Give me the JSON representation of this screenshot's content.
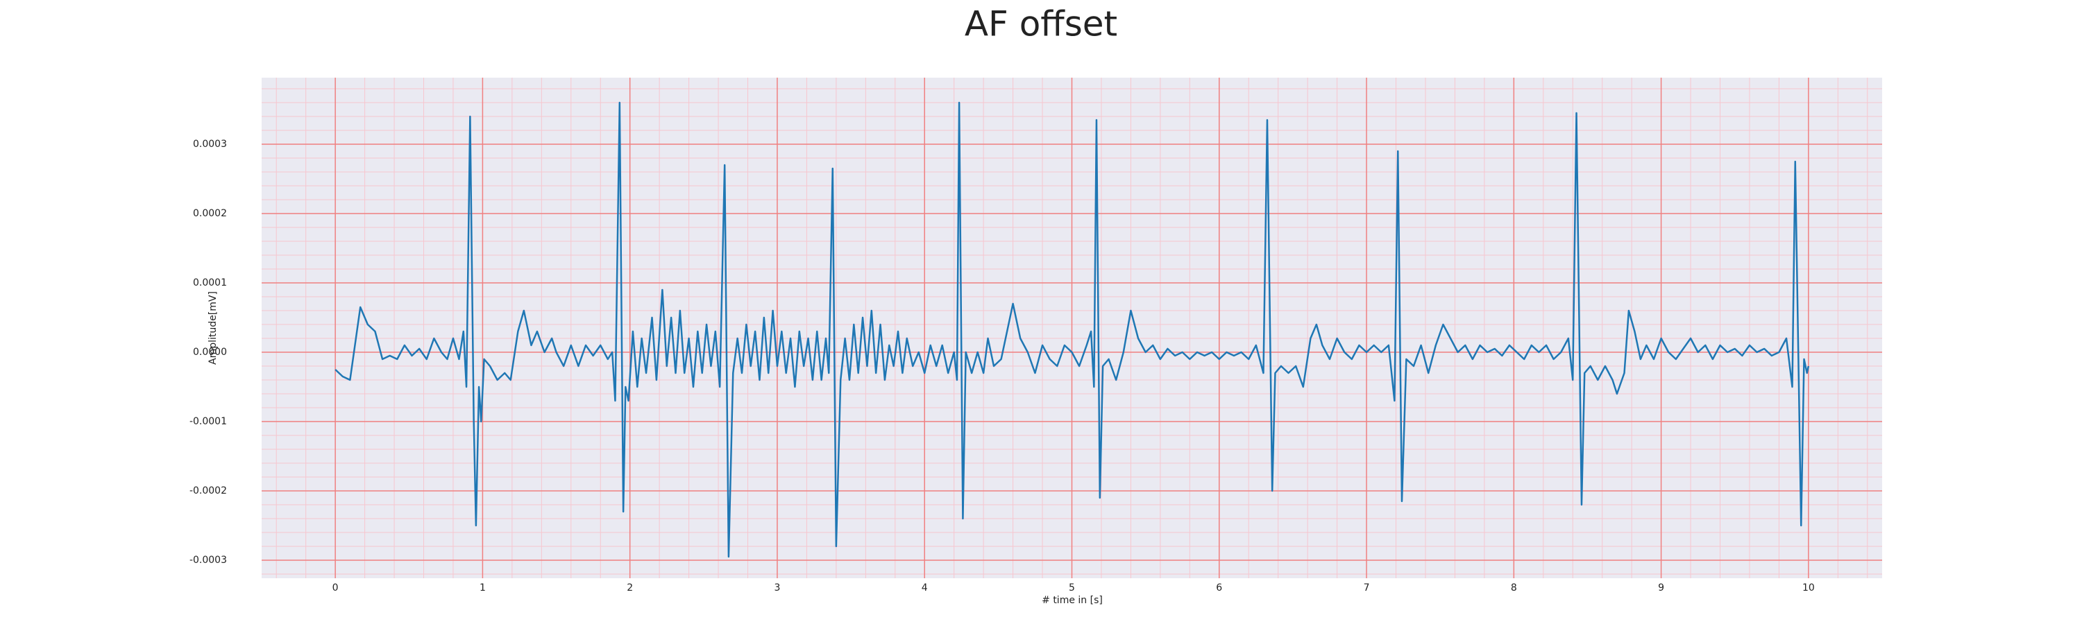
{
  "chart_data": {
    "type": "line",
    "title": "AF offset",
    "xlabel": "# time in [s]",
    "ylabel": "Amplitude[mV]",
    "color": "#1f77b4",
    "background": "#eaeaf2",
    "grid": true,
    "grid_color": "#f08080",
    "minor_grid": true,
    "minor_grid_color": "#f7c6cf",
    "xlim": [
      -0.5,
      10.5
    ],
    "xticks": [
      0,
      1,
      2,
      3,
      4,
      5,
      6,
      7,
      8,
      9,
      10
    ],
    "ylim": [
      -0.000326,
      0.000396
    ],
    "yticks": [
      -0.0003,
      -0.0002,
      -0.0001,
      {
        "value": 0,
        "label": "0.0000"
      },
      0.0001,
      0.0002,
      0.0003
    ],
    "x": [
      0,
      0.05,
      0.1,
      0.14,
      0.17,
      0.22,
      0.27,
      0.32,
      0.37,
      0.42,
      0.47,
      0.52,
      0.57,
      0.62,
      0.67,
      0.72,
      0.76,
      0.8,
      0.84,
      0.87,
      0.89,
      0.915,
      0.94,
      0.955,
      0.975,
      0.99,
      1.01,
      1.05,
      1.1,
      1.15,
      1.19,
      1.24,
      1.28,
      1.33,
      1.37,
      1.42,
      1.47,
      1.5,
      1.55,
      1.6,
      1.65,
      1.7,
      1.75,
      1.8,
      1.85,
      1.88,
      1.9,
      1.93,
      1.955,
      1.97,
      1.99,
      2.02,
      2.05,
      2.08,
      2.11,
      2.15,
      2.18,
      2.22,
      2.25,
      2.28,
      2.31,
      2.34,
      2.37,
      2.4,
      2.43,
      2.46,
      2.49,
      2.52,
      2.55,
      2.58,
      2.61,
      2.643,
      2.67,
      2.7,
      2.73,
      2.76,
      2.79,
      2.82,
      2.85,
      2.88,
      2.91,
      2.94,
      2.97,
      3.0,
      3.03,
      3.06,
      3.09,
      3.12,
      3.15,
      3.18,
      3.21,
      3.24,
      3.27,
      3.3,
      3.33,
      3.35,
      3.376,
      3.4,
      3.43,
      3.46,
      3.49,
      3.52,
      3.55,
      3.58,
      3.61,
      3.64,
      3.67,
      3.7,
      3.73,
      3.76,
      3.79,
      3.82,
      3.85,
      3.88,
      3.92,
      3.96,
      4.0,
      4.04,
      4.08,
      4.12,
      4.16,
      4.2,
      4.22,
      4.235,
      4.26,
      4.28,
      4.32,
      4.36,
      4.4,
      4.43,
      4.47,
      4.52,
      4.55,
      4.6,
      4.65,
      4.7,
      4.75,
      4.8,
      4.85,
      4.9,
      4.95,
      5.0,
      5.05,
      5.1,
      5.13,
      5.15,
      5.167,
      5.19,
      5.21,
      5.25,
      5.3,
      5.35,
      5.4,
      5.45,
      5.5,
      5.55,
      5.6,
      5.65,
      5.7,
      5.75,
      5.8,
      5.85,
      5.9,
      5.95,
      6.0,
      6.05,
      6.1,
      6.15,
      6.2,
      6.25,
      6.3,
      6.326,
      6.36,
      6.38,
      6.42,
      6.47,
      6.52,
      6.57,
      6.62,
      6.66,
      6.7,
      6.75,
      6.8,
      6.85,
      6.9,
      6.95,
      7.0,
      7.05,
      7.1,
      7.15,
      7.19,
      7.213,
      7.24,
      7.27,
      7.32,
      7.37,
      7.42,
      7.47,
      7.52,
      7.57,
      7.62,
      7.67,
      7.72,
      7.77,
      7.82,
      7.87,
      7.92,
      7.97,
      8.02,
      8.07,
      8.12,
      8.17,
      8.22,
      8.27,
      8.32,
      8.37,
      8.4,
      8.425,
      8.46,
      8.48,
      8.52,
      8.57,
      8.62,
      8.67,
      8.7,
      8.75,
      8.78,
      8.82,
      8.86,
      8.9,
      8.95,
      9.0,
      9.05,
      9.1,
      9.15,
      9.2,
      9.25,
      9.3,
      9.35,
      9.4,
      9.45,
      9.5,
      9.55,
      9.6,
      9.65,
      9.7,
      9.75,
      9.8,
      9.85,
      9.89,
      9.91,
      9.95,
      9.97,
      9.99,
      10.0
    ],
    "values": [
      -2.5e-05,
      -3.5e-05,
      -4e-05,
      2e-05,
      6.5e-05,
      4e-05,
      3e-05,
      -1e-05,
      -5e-06,
      -1e-05,
      1e-05,
      -5e-06,
      5e-06,
      -1e-05,
      2e-05,
      0,
      -1e-05,
      2e-05,
      -1e-05,
      3e-05,
      -5e-05,
      0.00034,
      -0.0001,
      -0.00025,
      -5e-05,
      -0.0001,
      -1e-05,
      -2e-05,
      -4e-05,
      -3e-05,
      -4e-05,
      3e-05,
      6e-05,
      1e-05,
      3e-05,
      0,
      2e-05,
      0,
      -2e-05,
      1e-05,
      -2e-05,
      1e-05,
      -5e-06,
      1e-05,
      -1e-05,
      0,
      -7e-05,
      0.00036,
      -0.00023,
      -5e-05,
      -7e-05,
      3e-05,
      -5e-05,
      2e-05,
      -3e-05,
      5e-05,
      -4e-05,
      9e-05,
      -2e-05,
      5e-05,
      -3e-05,
      6e-05,
      -3e-05,
      2e-05,
      -5e-05,
      3e-05,
      -3e-05,
      4e-05,
      -2e-05,
      3e-05,
      -5e-05,
      0.00027,
      -0.000295,
      -3e-05,
      2e-05,
      -3e-05,
      4e-05,
      -2e-05,
      3e-05,
      -4e-05,
      5e-05,
      -3e-05,
      6e-05,
      -2e-05,
      3e-05,
      -3e-05,
      2e-05,
      -5e-05,
      3e-05,
      -2e-05,
      2e-05,
      -4e-05,
      3e-05,
      -4e-05,
      2e-05,
      -3e-05,
      0.000265,
      -0.00028,
      -4e-05,
      2e-05,
      -4e-05,
      4e-05,
      -3e-05,
      5e-05,
      -2e-05,
      6e-05,
      -3e-05,
      4e-05,
      -4e-05,
      1e-05,
      -2e-05,
      3e-05,
      -3e-05,
      2e-05,
      -2e-05,
      0,
      -3e-05,
      1e-05,
      -2e-05,
      1e-05,
      -3e-05,
      0,
      -4e-05,
      0.00036,
      -0.00024,
      0,
      -3e-05,
      0,
      -3e-05,
      2e-05,
      -2e-05,
      -1e-05,
      2e-05,
      7e-05,
      2e-05,
      0,
      -3e-05,
      1e-05,
      -1e-05,
      -2e-05,
      1e-05,
      0,
      -2e-05,
      1e-05,
      3e-05,
      -5e-05,
      0.000335,
      -0.00021,
      -2e-05,
      -1e-05,
      -4e-05,
      0,
      6e-05,
      2e-05,
      0,
      1e-05,
      -1e-05,
      5e-06,
      -5e-06,
      0,
      -1e-05,
      0,
      -5e-06,
      0,
      -1e-05,
      0,
      -5e-06,
      0,
      -1e-05,
      1e-05,
      -3e-05,
      0.000335,
      -0.0002,
      -3e-05,
      -2e-05,
      -3e-05,
      -2e-05,
      -5e-05,
      2e-05,
      4e-05,
      1e-05,
      -1e-05,
      2e-05,
      0,
      -1e-05,
      1e-05,
      0,
      1e-05,
      0,
      1e-05,
      -7e-05,
      0.00029,
      -0.000215,
      -1e-05,
      -2e-05,
      1e-05,
      -3e-05,
      1e-05,
      4e-05,
      2e-05,
      0,
      1e-05,
      -1e-05,
      1e-05,
      0,
      5e-06,
      -5e-06,
      1e-05,
      0,
      -1e-05,
      1e-05,
      0,
      1e-05,
      -1e-05,
      0,
      2e-05,
      -4e-05,
      0.000345,
      -0.00022,
      -3e-05,
      -2e-05,
      -4e-05,
      -2e-05,
      -4e-05,
      -6e-05,
      -3e-05,
      6e-05,
      3e-05,
      -1e-05,
      1e-05,
      -1e-05,
      2e-05,
      0,
      -1e-05,
      5e-06,
      2e-05,
      0,
      1e-05,
      -1e-05,
      1e-05,
      0,
      5e-06,
      -5e-06,
      1e-05,
      0,
      5e-06,
      -5e-06,
      0,
      2e-05,
      -5e-05,
      0.000275,
      -0.00025,
      -1e-05,
      -3e-05,
      -2e-05
    ]
  }
}
